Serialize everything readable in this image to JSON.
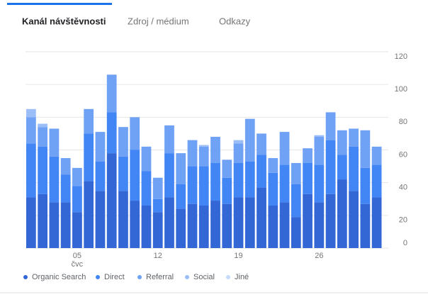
{
  "tabs": [
    "Kanál návštěvnosti",
    "Zdroj / médium",
    "Odkazy"
  ],
  "chart_data": {
    "type": "stacked-bar",
    "categories": [
      null,
      null,
      null,
      null,
      "05",
      null,
      null,
      null,
      null,
      null,
      null,
      "12",
      null,
      null,
      null,
      null,
      null,
      null,
      "19",
      null,
      null,
      null,
      null,
      null,
      null,
      "26",
      null,
      null,
      null,
      null,
      null
    ],
    "x_month_label": "čvc",
    "series": [
      {
        "name": "Organic Search",
        "color": "#3367d6",
        "values": [
          31,
          33,
          28,
          28,
          22,
          41,
          35,
          58,
          35,
          29,
          26,
          22,
          31,
          24,
          27,
          26,
          29,
          27,
          31,
          31,
          37,
          26,
          28,
          19,
          33,
          28,
          33,
          42,
          35,
          27,
          31
        ]
      },
      {
        "name": "Direct",
        "color": "#4285f4",
        "values": [
          33,
          29,
          28,
          17,
          16,
          29,
          18,
          25,
          21,
          31,
          21,
          8,
          27,
          15,
          23,
          24,
          23,
          16,
          21,
          22,
          20,
          20,
          23,
          20,
          19,
          23,
          33,
          15,
          27,
          22,
          20
        ]
      },
      {
        "name": "Referral",
        "color": "#6fa1f5",
        "values": [
          16,
          12,
          17,
          10,
          11,
          15,
          18,
          23,
          18,
          20,
          15,
          13,
          17,
          19,
          16,
          12,
          16,
          11,
          12,
          26,
          13,
          9,
          20,
          13,
          9,
          17,
          17,
          15,
          11,
          23,
          11
        ]
      },
      {
        "name": "Social",
        "color": "#9cbef8",
        "values": [
          5,
          2,
          0,
          0,
          0,
          0,
          0,
          0,
          0,
          0,
          0,
          0,
          0,
          0,
          0,
          1,
          0,
          0,
          2,
          0,
          0,
          0,
          0,
          0,
          0,
          1,
          0,
          0,
          0,
          0,
          0
        ]
      },
      {
        "name": "Jiné",
        "color": "#c6dafc",
        "values": [
          0,
          0,
          0,
          0,
          0,
          0,
          0,
          0,
          0,
          0,
          0,
          0,
          0,
          0,
          0,
          0,
          0,
          0,
          0,
          0,
          0,
          0,
          0,
          0,
          0,
          0,
          0,
          0,
          0,
          0,
          0
        ]
      }
    ],
    "ylim": [
      0,
      120
    ],
    "yticks": [
      0,
      20,
      40,
      60,
      80,
      100,
      120
    ],
    "grid": true
  }
}
